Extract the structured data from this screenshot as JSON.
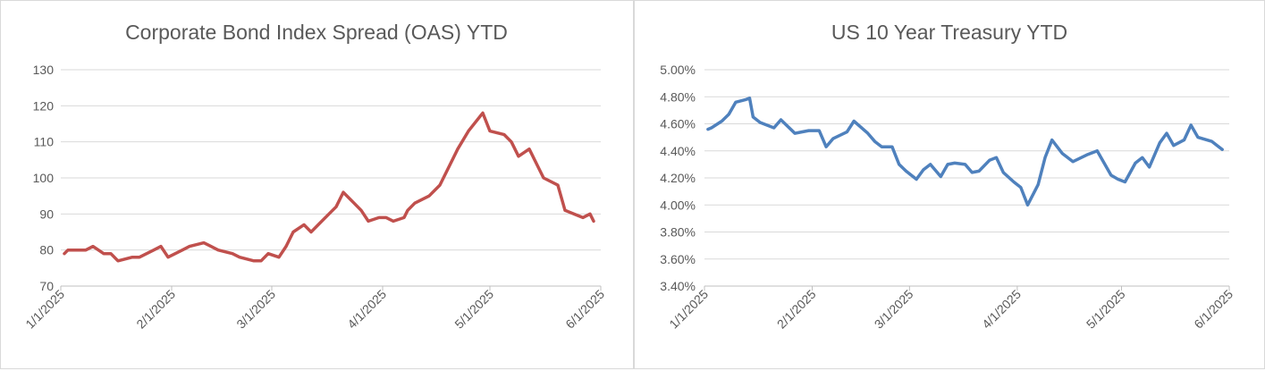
{
  "chart_data": [
    {
      "type": "line",
      "title": "Corporate Bond Index Spread (OAS) YTD",
      "xlabel": "",
      "ylabel": "",
      "ylim": [
        70,
        130
      ],
      "yticks": [
        "130",
        "120",
        "110",
        "100",
        "90",
        "80",
        "70"
      ],
      "xticks": [
        "1/1/2025",
        "2/1/2025",
        "3/1/2025",
        "4/1/2025",
        "5/1/2025",
        "6/1/2025"
      ],
      "grid": true,
      "color": "#c0504d",
      "series": [
        {
          "x": [
            "2025-01-02",
            "2025-01-03",
            "2025-01-06",
            "2025-01-08",
            "2025-01-10",
            "2025-01-13",
            "2025-01-15",
            "2025-01-17",
            "2025-01-21",
            "2025-01-23",
            "2025-01-27",
            "2025-01-29",
            "2025-01-31",
            "2025-02-04",
            "2025-02-06",
            "2025-02-10",
            "2025-02-12",
            "2025-02-14",
            "2025-02-18",
            "2025-02-20",
            "2025-02-24",
            "2025-02-26",
            "2025-02-28",
            "2025-03-03",
            "2025-03-05",
            "2025-03-07",
            "2025-03-10",
            "2025-03-12",
            "2025-03-14",
            "2025-03-17",
            "2025-03-19",
            "2025-03-21",
            "2025-03-24",
            "2025-03-26",
            "2025-03-28",
            "2025-03-31",
            "2025-04-02",
            "2025-04-04",
            "2025-04-07",
            "2025-04-08",
            "2025-04-10",
            "2025-04-14",
            "2025-04-17",
            "2025-04-22",
            "2025-04-25",
            "2025-04-29",
            "2025-05-01",
            "2025-05-05",
            "2025-05-07",
            "2025-05-09",
            "2025-05-12",
            "2025-05-14",
            "2025-05-16",
            "2025-05-20",
            "2025-05-22",
            "2025-05-27",
            "2025-05-29",
            "2025-05-30"
          ],
          "y": [
            79,
            80,
            80,
            80,
            81,
            79,
            79,
            77,
            78,
            78,
            80,
            81,
            78,
            80,
            81,
            82,
            81,
            80,
            79,
            78,
            77,
            77,
            79,
            78,
            81,
            85,
            87,
            85,
            87,
            90,
            92,
            96,
            93,
            91,
            88,
            89,
            89,
            88,
            89,
            91,
            93,
            95,
            98,
            108,
            113,
            118,
            113,
            112,
            110,
            106,
            108,
            104,
            100,
            98,
            91,
            89,
            90,
            88
          ]
        }
      ]
    },
    {
      "type": "line",
      "title": "US 10 Year Treasury YTD",
      "xlabel": "",
      "ylabel": "",
      "ylim": [
        3.4,
        5.0
      ],
      "yticks": [
        "5.00%",
        "4.80%",
        "4.60%",
        "4.40%",
        "4.20%",
        "4.00%",
        "3.80%",
        "3.60%",
        "3.40%"
      ],
      "xticks": [
        "1/1/2025",
        "2/1/2025",
        "3/1/2025",
        "4/1/2025",
        "5/1/2025",
        "6/1/2025"
      ],
      "grid": true,
      "color": "#4f81bd",
      "series": [
        {
          "x": [
            "2025-01-02",
            "2025-01-03",
            "2025-01-06",
            "2025-01-08",
            "2025-01-10",
            "2025-01-13",
            "2025-01-14",
            "2025-01-15",
            "2025-01-17",
            "2025-01-21",
            "2025-01-23",
            "2025-01-27",
            "2025-01-29",
            "2025-01-31",
            "2025-02-03",
            "2025-02-05",
            "2025-02-07",
            "2025-02-11",
            "2025-02-13",
            "2025-02-17",
            "2025-02-19",
            "2025-02-21",
            "2025-02-24",
            "2025-02-26",
            "2025-02-28",
            "2025-03-03",
            "2025-03-05",
            "2025-03-07",
            "2025-03-10",
            "2025-03-12",
            "2025-03-14",
            "2025-03-17",
            "2025-03-19",
            "2025-03-21",
            "2025-03-24",
            "2025-03-26",
            "2025-03-28",
            "2025-03-31",
            "2025-04-02",
            "2025-04-04",
            "2025-04-07",
            "2025-04-09",
            "2025-04-11",
            "2025-04-14",
            "2025-04-17",
            "2025-04-21",
            "2025-04-24",
            "2025-04-28",
            "2025-04-30",
            "2025-05-02",
            "2025-05-05",
            "2025-05-07",
            "2025-05-09",
            "2025-05-12",
            "2025-05-14",
            "2025-05-16",
            "2025-05-19",
            "2025-05-21",
            "2025-05-23",
            "2025-05-27",
            "2025-05-29",
            "2025-05-30"
          ],
          "y": [
            4.56,
            4.57,
            4.62,
            4.67,
            4.76,
            4.78,
            4.79,
            4.65,
            4.61,
            4.57,
            4.63,
            4.53,
            4.54,
            4.55,
            4.55,
            4.43,
            4.49,
            4.54,
            4.62,
            4.53,
            4.47,
            4.43,
            4.43,
            4.3,
            4.25,
            4.19,
            4.26,
            4.3,
            4.21,
            4.3,
            4.31,
            4.3,
            4.24,
            4.25,
            4.33,
            4.35,
            4.24,
            4.17,
            4.13,
            4.0,
            4.15,
            4.35,
            4.48,
            4.38,
            4.32,
            4.37,
            4.4,
            4.22,
            4.19,
            4.17,
            4.31,
            4.35,
            4.28,
            4.46,
            4.53,
            4.44,
            4.48,
            4.59,
            4.5,
            4.47,
            4.43,
            4.41
          ]
        }
      ]
    }
  ]
}
